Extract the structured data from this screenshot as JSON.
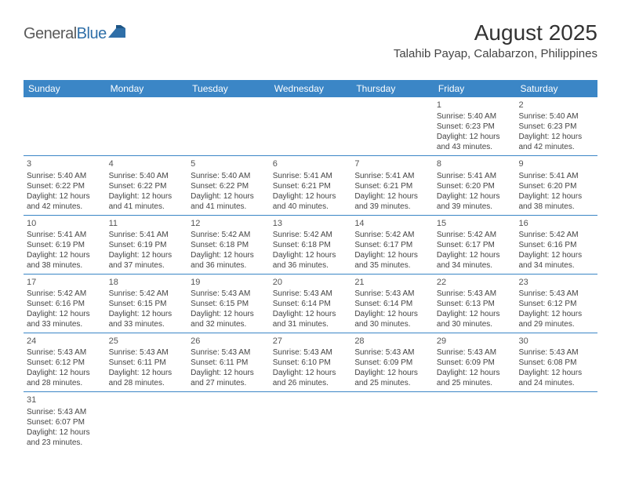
{
  "logo": {
    "part1": "General",
    "part2": "Blue"
  },
  "header": {
    "title": "August 2025",
    "subtitle": "Talahib Payap, Calabarzon, Philippines"
  },
  "colors": {
    "header_bg": "#3b86c6",
    "header_text": "#ffffff",
    "rule": "#3b86c6",
    "logo_blue": "#2f6fa8",
    "logo_gray": "#5a5a5a",
    "text": "#444444"
  },
  "day_names": [
    "Sunday",
    "Monday",
    "Tuesday",
    "Wednesday",
    "Thursday",
    "Friday",
    "Saturday"
  ],
  "weeks": [
    [
      null,
      null,
      null,
      null,
      null,
      {
        "n": "1",
        "sunrise": "5:40 AM",
        "sunset": "6:23 PM",
        "dl1": "Daylight: 12 hours",
        "dl2": "and 43 minutes."
      },
      {
        "n": "2",
        "sunrise": "5:40 AM",
        "sunset": "6:23 PM",
        "dl1": "Daylight: 12 hours",
        "dl2": "and 42 minutes."
      }
    ],
    [
      {
        "n": "3",
        "sunrise": "5:40 AM",
        "sunset": "6:22 PM",
        "dl1": "Daylight: 12 hours",
        "dl2": "and 42 minutes."
      },
      {
        "n": "4",
        "sunrise": "5:40 AM",
        "sunset": "6:22 PM",
        "dl1": "Daylight: 12 hours",
        "dl2": "and 41 minutes."
      },
      {
        "n": "5",
        "sunrise": "5:40 AM",
        "sunset": "6:22 PM",
        "dl1": "Daylight: 12 hours",
        "dl2": "and 41 minutes."
      },
      {
        "n": "6",
        "sunrise": "5:41 AM",
        "sunset": "6:21 PM",
        "dl1": "Daylight: 12 hours",
        "dl2": "and 40 minutes."
      },
      {
        "n": "7",
        "sunrise": "5:41 AM",
        "sunset": "6:21 PM",
        "dl1": "Daylight: 12 hours",
        "dl2": "and 39 minutes."
      },
      {
        "n": "8",
        "sunrise": "5:41 AM",
        "sunset": "6:20 PM",
        "dl1": "Daylight: 12 hours",
        "dl2": "and 39 minutes."
      },
      {
        "n": "9",
        "sunrise": "5:41 AM",
        "sunset": "6:20 PM",
        "dl1": "Daylight: 12 hours",
        "dl2": "and 38 minutes."
      }
    ],
    [
      {
        "n": "10",
        "sunrise": "5:41 AM",
        "sunset": "6:19 PM",
        "dl1": "Daylight: 12 hours",
        "dl2": "and 38 minutes."
      },
      {
        "n": "11",
        "sunrise": "5:41 AM",
        "sunset": "6:19 PM",
        "dl1": "Daylight: 12 hours",
        "dl2": "and 37 minutes."
      },
      {
        "n": "12",
        "sunrise": "5:42 AM",
        "sunset": "6:18 PM",
        "dl1": "Daylight: 12 hours",
        "dl2": "and 36 minutes."
      },
      {
        "n": "13",
        "sunrise": "5:42 AM",
        "sunset": "6:18 PM",
        "dl1": "Daylight: 12 hours",
        "dl2": "and 36 minutes."
      },
      {
        "n": "14",
        "sunrise": "5:42 AM",
        "sunset": "6:17 PM",
        "dl1": "Daylight: 12 hours",
        "dl2": "and 35 minutes."
      },
      {
        "n": "15",
        "sunrise": "5:42 AM",
        "sunset": "6:17 PM",
        "dl1": "Daylight: 12 hours",
        "dl2": "and 34 minutes."
      },
      {
        "n": "16",
        "sunrise": "5:42 AM",
        "sunset": "6:16 PM",
        "dl1": "Daylight: 12 hours",
        "dl2": "and 34 minutes."
      }
    ],
    [
      {
        "n": "17",
        "sunrise": "5:42 AM",
        "sunset": "6:16 PM",
        "dl1": "Daylight: 12 hours",
        "dl2": "and 33 minutes."
      },
      {
        "n": "18",
        "sunrise": "5:42 AM",
        "sunset": "6:15 PM",
        "dl1": "Daylight: 12 hours",
        "dl2": "and 33 minutes."
      },
      {
        "n": "19",
        "sunrise": "5:43 AM",
        "sunset": "6:15 PM",
        "dl1": "Daylight: 12 hours",
        "dl2": "and 32 minutes."
      },
      {
        "n": "20",
        "sunrise": "5:43 AM",
        "sunset": "6:14 PM",
        "dl1": "Daylight: 12 hours",
        "dl2": "and 31 minutes."
      },
      {
        "n": "21",
        "sunrise": "5:43 AM",
        "sunset": "6:14 PM",
        "dl1": "Daylight: 12 hours",
        "dl2": "and 30 minutes."
      },
      {
        "n": "22",
        "sunrise": "5:43 AM",
        "sunset": "6:13 PM",
        "dl1": "Daylight: 12 hours",
        "dl2": "and 30 minutes."
      },
      {
        "n": "23",
        "sunrise": "5:43 AM",
        "sunset": "6:12 PM",
        "dl1": "Daylight: 12 hours",
        "dl2": "and 29 minutes."
      }
    ],
    [
      {
        "n": "24",
        "sunrise": "5:43 AM",
        "sunset": "6:12 PM",
        "dl1": "Daylight: 12 hours",
        "dl2": "and 28 minutes."
      },
      {
        "n": "25",
        "sunrise": "5:43 AM",
        "sunset": "6:11 PM",
        "dl1": "Daylight: 12 hours",
        "dl2": "and 28 minutes."
      },
      {
        "n": "26",
        "sunrise": "5:43 AM",
        "sunset": "6:11 PM",
        "dl1": "Daylight: 12 hours",
        "dl2": "and 27 minutes."
      },
      {
        "n": "27",
        "sunrise": "5:43 AM",
        "sunset": "6:10 PM",
        "dl1": "Daylight: 12 hours",
        "dl2": "and 26 minutes."
      },
      {
        "n": "28",
        "sunrise": "5:43 AM",
        "sunset": "6:09 PM",
        "dl1": "Daylight: 12 hours",
        "dl2": "and 25 minutes."
      },
      {
        "n": "29",
        "sunrise": "5:43 AM",
        "sunset": "6:09 PM",
        "dl1": "Daylight: 12 hours",
        "dl2": "and 25 minutes."
      },
      {
        "n": "30",
        "sunrise": "5:43 AM",
        "sunset": "6:08 PM",
        "dl1": "Daylight: 12 hours",
        "dl2": "and 24 minutes."
      }
    ],
    [
      {
        "n": "31",
        "sunrise": "5:43 AM",
        "sunset": "6:07 PM",
        "dl1": "Daylight: 12 hours",
        "dl2": "and 23 minutes."
      },
      null,
      null,
      null,
      null,
      null,
      null
    ]
  ],
  "labels": {
    "sunrise": "Sunrise: ",
    "sunset": "Sunset: "
  }
}
